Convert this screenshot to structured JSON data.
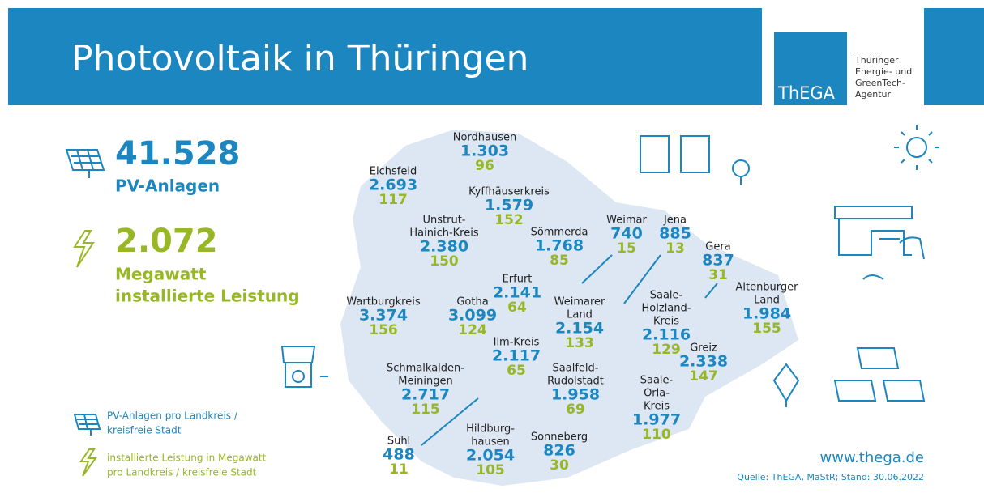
{
  "header": {
    "title": "Photovoltaik in Thüringen"
  },
  "logo": {
    "mark": "ThEGA",
    "lines": [
      "Thüringer",
      "Energie- und",
      "GreenTech-",
      "Agentur"
    ]
  },
  "totals": {
    "pv_count": "41.528",
    "pv_label": "PV-Anlagen",
    "mw_value": "2.072",
    "mw_label": [
      "Megawatt",
      "installierte Leistung"
    ]
  },
  "regions": [
    {
      "name": [
        "Nordhausen"
      ],
      "count": "1.303",
      "mw": "96"
    },
    {
      "name": [
        "Eichsfeld"
      ],
      "count": "2.693",
      "mw": "117"
    },
    {
      "name": [
        "Kyffhäuserkreis"
      ],
      "count": "1.579",
      "mw": "152"
    },
    {
      "name": [
        "Unstrut-",
        "Hainich-Kreis"
      ],
      "count": "2.380",
      "mw": "150"
    },
    {
      "name": [
        "Sömmerda"
      ],
      "count": "1.768",
      "mw": "85"
    },
    {
      "name": [
        "Weimar"
      ],
      "count": "740",
      "mw": "15"
    },
    {
      "name": [
        "Jena"
      ],
      "count": "885",
      "mw": "13"
    },
    {
      "name": [
        "Gera"
      ],
      "count": "837",
      "mw": "31"
    },
    {
      "name": [
        "Erfurt"
      ],
      "count": "2.141",
      "mw": "64"
    },
    {
      "name": [
        "Altenburger",
        "Land"
      ],
      "count": "1.984",
      "mw": "155"
    },
    {
      "name": [
        "Wartburgkreis"
      ],
      "count": "3.374",
      "mw": "156"
    },
    {
      "name": [
        "Gotha"
      ],
      "count": "3.099",
      "mw": "124"
    },
    {
      "name": [
        "Weimarer",
        "Land"
      ],
      "count": "2.154",
      "mw": "133"
    },
    {
      "name": [
        "Saale-",
        "Holzland-",
        "Kreis"
      ],
      "count": "2.116",
      "mw": "129"
    },
    {
      "name": [
        "Ilm-Kreis"
      ],
      "count": "2.117",
      "mw": "65"
    },
    {
      "name": [
        "Greiz"
      ],
      "count": "2.338",
      "mw": "147"
    },
    {
      "name": [
        "Schmalkalden-",
        "Meiningen"
      ],
      "count": "2.717",
      "mw": "115"
    },
    {
      "name": [
        "Saalfeld-",
        "Rudolstadt"
      ],
      "count": "1.958",
      "mw": "69"
    },
    {
      "name": [
        "Saale-",
        "Orla-",
        "Kreis"
      ],
      "count": "1.977",
      "mw": "110"
    },
    {
      "name": [
        "Suhl"
      ],
      "count": "488",
      "mw": "11"
    },
    {
      "name": [
        "Hildburg-",
        "hausen"
      ],
      "count": "2.054",
      "mw": "105"
    },
    {
      "name": [
        "Sonneberg"
      ],
      "count": "826",
      "mw": "30"
    }
  ],
  "legend": [
    {
      "lines": [
        "PV-Anlagen pro Landkreis /",
        "kreisfreie Stadt"
      ]
    },
    {
      "lines": [
        "installierte Leistung in Megawatt",
        "pro Landkreis / kreisfreie Stadt"
      ]
    }
  ],
  "footer": {
    "url": "www.thega.de",
    "source": "Quelle: ThEGA, MaStR; Stand: 30.06.2022"
  }
}
